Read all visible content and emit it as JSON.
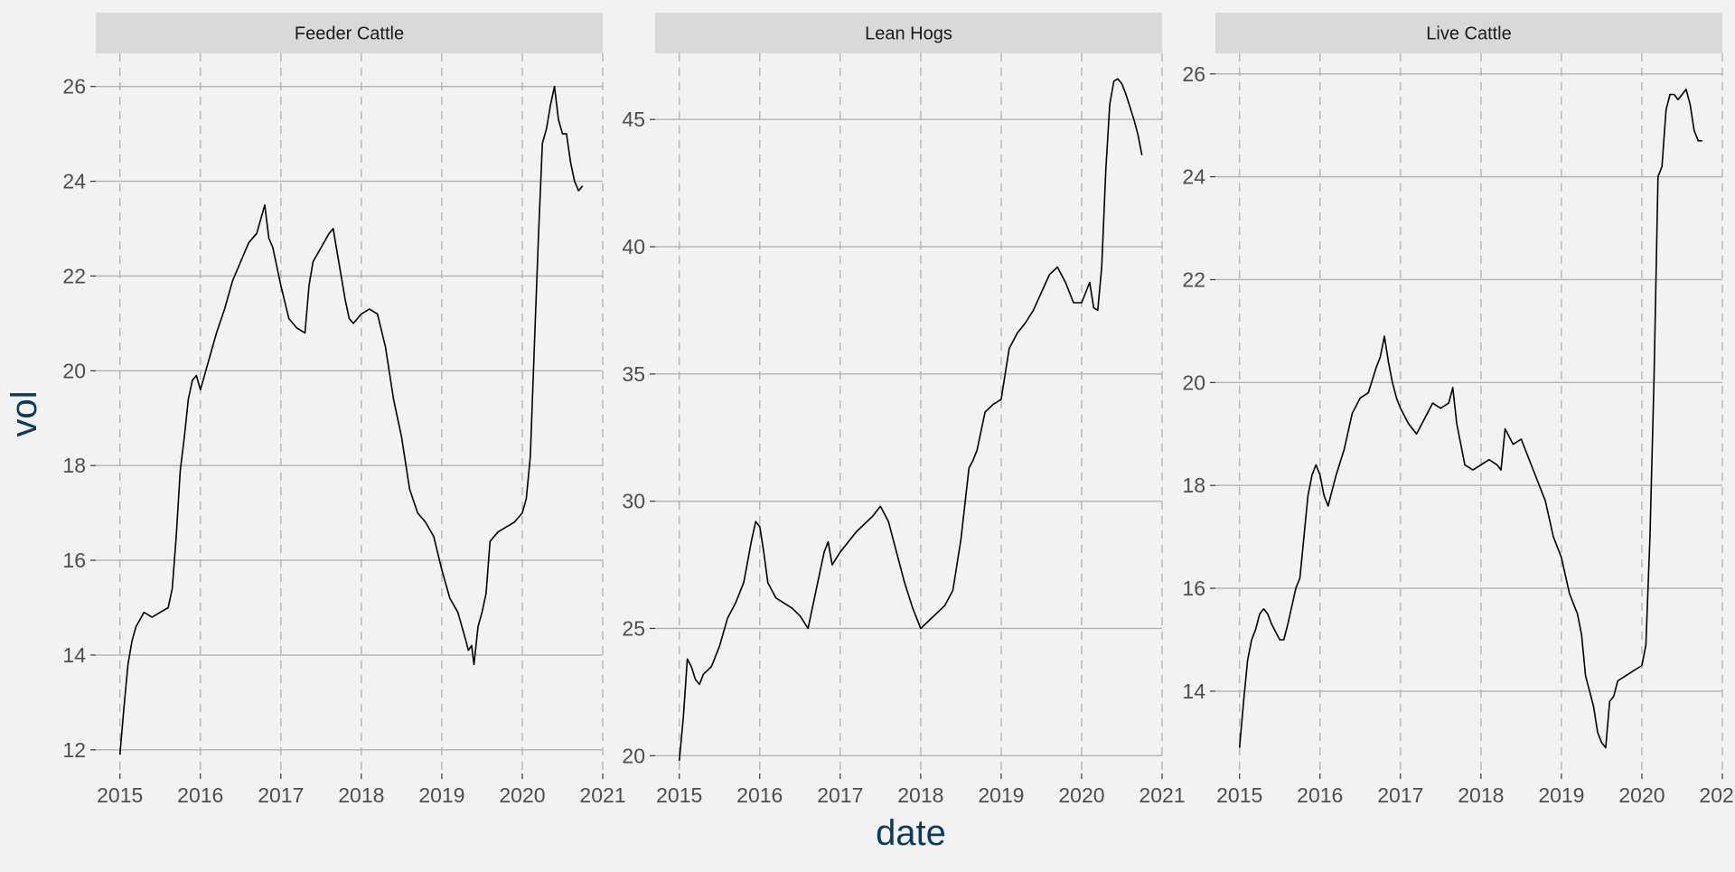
{
  "chart_data": {
    "type": "line",
    "xlabel": "date",
    "ylabel": "vol",
    "x_ticks": [
      "2015",
      "2016",
      "2017",
      "2018",
      "2019",
      "2020",
      "2021"
    ],
    "xlim": [
      2014.7,
      2021.0
    ],
    "grid": true,
    "colors": {
      "panel_bg": "#f2f2f2",
      "strip_bg": "#d9d9d9",
      "line": "#000000",
      "grid_major": "#b3b3b3",
      "grid_vertical": "#b3b3b3"
    },
    "panels": [
      {
        "title": "Feeder Cattle",
        "ylim": [
          11.5,
          26.7
        ],
        "y_ticks": [
          12,
          14,
          16,
          18,
          20,
          22,
          24,
          26
        ],
        "series": [
          {
            "x": [
              2015.0,
              2015.05,
              2015.1,
              2015.15,
              2015.2,
              2015.3,
              2015.4,
              2015.5,
              2015.6,
              2015.65,
              2015.7,
              2015.75,
              2015.8,
              2015.85,
              2015.9,
              2015.95,
              2016.0,
              2016.1,
              2016.2,
              2016.3,
              2016.4,
              2016.5,
              2016.6,
              2016.7,
              2016.8,
              2016.85,
              2016.9,
              2017.0,
              2017.1,
              2017.2,
              2017.3,
              2017.35,
              2017.4,
              2017.5,
              2017.6,
              2017.65,
              2017.7,
              2017.8,
              2017.85,
              2017.9,
              2018.0,
              2018.1,
              2018.2,
              2018.3,
              2018.4,
              2018.5,
              2018.6,
              2018.7,
              2018.8,
              2018.9,
              2019.0,
              2019.1,
              2019.2,
              2019.3,
              2019.33,
              2019.37,
              2019.4,
              2019.45,
              2019.5,
              2019.55,
              2019.6,
              2019.65,
              2019.7,
              2019.8,
              2019.9,
              2020.0,
              2020.05,
              2020.1,
              2020.15,
              2020.2,
              2020.25,
              2020.3,
              2020.35,
              2020.4,
              2020.45,
              2020.5,
              2020.55,
              2020.6,
              2020.65,
              2020.7,
              2020.75
            ],
            "y": [
              11.9,
              12.9,
              13.8,
              14.3,
              14.6,
              14.9,
              14.8,
              14.9,
              15.0,
              15.4,
              16.5,
              17.9,
              18.6,
              19.4,
              19.8,
              19.9,
              19.6,
              20.2,
              20.8,
              21.3,
              21.9,
              22.3,
              22.7,
              22.9,
              23.5,
              22.8,
              22.6,
              21.8,
              21.1,
              20.9,
              20.8,
              21.8,
              22.3,
              22.6,
              22.9,
              23.0,
              22.5,
              21.5,
              21.1,
              21.0,
              21.2,
              21.3,
              21.2,
              20.5,
              19.4,
              18.6,
              17.5,
              17.0,
              16.8,
              16.5,
              15.8,
              15.2,
              14.9,
              14.3,
              14.1,
              14.2,
              13.8,
              14.6,
              14.9,
              15.3,
              16.4,
              16.5,
              16.6,
              16.7,
              16.8,
              17.0,
              17.3,
              18.2,
              20.5,
              22.8,
              24.8,
              25.1,
              25.6,
              26.0,
              25.3,
              25.0,
              25.0,
              24.4,
              24.0,
              23.8,
              23.9
            ]
          }
        ]
      },
      {
        "title": "Lean Hogs",
        "ylim": [
          19.3,
          47.6
        ],
        "y_ticks": [
          20,
          25,
          30,
          35,
          40,
          45
        ],
        "series": [
          {
            "x": [
              2015.0,
              2015.05,
              2015.1,
              2015.15,
              2015.2,
              2015.25,
              2015.3,
              2015.4,
              2015.5,
              2015.6,
              2015.7,
              2015.8,
              2015.9,
              2015.95,
              2016.0,
              2016.05,
              2016.1,
              2016.2,
              2016.3,
              2016.4,
              2016.5,
              2016.6,
              2016.7,
              2016.8,
              2016.85,
              2016.9,
              2017.0,
              2017.1,
              2017.2,
              2017.3,
              2017.4,
              2017.5,
              2017.6,
              2017.7,
              2017.8,
              2017.9,
              2018.0,
              2018.1,
              2018.2,
              2018.3,
              2018.4,
              2018.5,
              2018.6,
              2018.65,
              2018.7,
              2018.8,
              2018.9,
              2019.0,
              2019.1,
              2019.2,
              2019.3,
              2019.4,
              2019.5,
              2019.6,
              2019.7,
              2019.8,
              2019.9,
              2020.0,
              2020.1,
              2020.15,
              2020.2,
              2020.25,
              2020.3,
              2020.35,
              2020.4,
              2020.45,
              2020.5,
              2020.55,
              2020.6,
              2020.65,
              2020.7,
              2020.75
            ],
            "y": [
              19.8,
              21.5,
              23.8,
              23.5,
              23.0,
              22.8,
              23.2,
              23.5,
              24.3,
              25.4,
              26.0,
              26.8,
              28.5,
              29.2,
              29.0,
              28.0,
              26.8,
              26.2,
              26.0,
              25.8,
              25.5,
              25.0,
              26.5,
              28.0,
              28.4,
              27.5,
              28.0,
              28.4,
              28.8,
              29.1,
              29.4,
              29.8,
              29.2,
              28.0,
              26.8,
              25.8,
              25.0,
              25.3,
              25.6,
              25.9,
              26.5,
              28.5,
              31.3,
              31.6,
              32.0,
              33.5,
              33.8,
              34.0,
              36.0,
              36.6,
              37.0,
              37.5,
              38.2,
              38.9,
              39.2,
              38.6,
              37.8,
              37.8,
              38.6,
              37.6,
              37.5,
              39.2,
              43.0,
              45.6,
              46.5,
              46.6,
              46.4,
              46.0,
              45.5,
              45.0,
              44.4,
              43.6
            ]
          }
        ]
      },
      {
        "title": "Live Cattle",
        "ylim": [
          12.4,
          26.4
        ],
        "y_ticks": [
          14,
          16,
          18,
          20,
          22,
          24,
          26
        ],
        "series": [
          {
            "x": [
              2015.0,
              2015.05,
              2015.1,
              2015.15,
              2015.2,
              2015.25,
              2015.3,
              2015.35,
              2015.4,
              2015.5,
              2015.55,
              2015.6,
              2015.7,
              2015.75,
              2015.8,
              2015.85,
              2015.9,
              2015.95,
              2016.0,
              2016.05,
              2016.1,
              2016.15,
              2016.2,
              2016.3,
              2016.4,
              2016.5,
              2016.6,
              2016.7,
              2016.75,
              2016.8,
              2016.85,
              2016.9,
              2016.95,
              2017.0,
              2017.1,
              2017.2,
              2017.3,
              2017.4,
              2017.5,
              2017.6,
              2017.65,
              2017.7,
              2017.8,
              2017.9,
              2018.0,
              2018.1,
              2018.2,
              2018.25,
              2018.3,
              2018.4,
              2018.5,
              2018.6,
              2018.7,
              2018.8,
              2018.9,
              2019.0,
              2019.1,
              2019.2,
              2019.25,
              2019.3,
              2019.35,
              2019.4,
              2019.45,
              2019.5,
              2019.55,
              2019.6,
              2019.65,
              2019.7,
              2019.8,
              2019.9,
              2020.0,
              2020.05,
              2020.1,
              2020.15,
              2020.2,
              2020.25,
              2020.3,
              2020.35,
              2020.4,
              2020.45,
              2020.5,
              2020.55,
              2020.6,
              2020.65,
              2020.7,
              2020.75
            ],
            "y": [
              12.9,
              13.8,
              14.6,
              15.0,
              15.2,
              15.5,
              15.6,
              15.5,
              15.3,
              15.0,
              15.0,
              15.3,
              16.0,
              16.2,
              17.0,
              17.8,
              18.2,
              18.4,
              18.2,
              17.8,
              17.6,
              17.9,
              18.2,
              18.7,
              19.4,
              19.7,
              19.8,
              20.3,
              20.5,
              20.9,
              20.4,
              20.0,
              19.7,
              19.5,
              19.2,
              19.0,
              19.3,
              19.6,
              19.5,
              19.6,
              19.9,
              19.2,
              18.4,
              18.3,
              18.4,
              18.5,
              18.4,
              18.3,
              19.1,
              18.8,
              18.9,
              18.5,
              18.1,
              17.7,
              17.0,
              16.6,
              15.9,
              15.5,
              15.1,
              14.3,
              14.0,
              13.7,
              13.2,
              13.0,
              12.9,
              13.8,
              13.9,
              14.2,
              14.3,
              14.4,
              14.5,
              14.9,
              17.0,
              20.0,
              24.0,
              24.2,
              25.3,
              25.6,
              25.6,
              25.5,
              25.6,
              25.7,
              25.4,
              24.9,
              24.7,
              24.7
            ]
          }
        ]
      }
    ]
  }
}
